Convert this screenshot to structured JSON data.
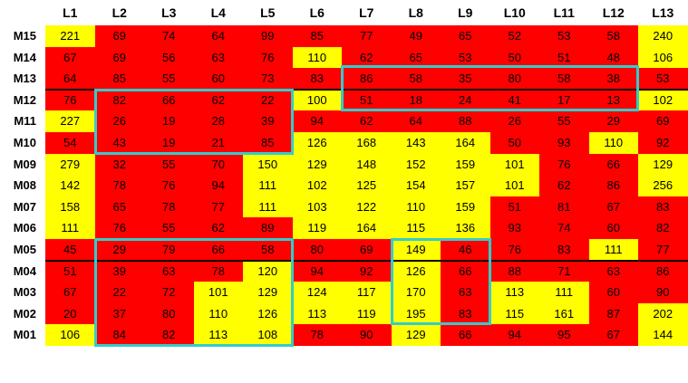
{
  "columns": [
    "L1",
    "L2",
    "L3",
    "L4",
    "L5",
    "L6",
    "L7",
    "L8",
    "L9",
    "L10",
    "L11",
    "L12",
    "L13"
  ],
  "rows": [
    {
      "label": "M15",
      "values": [
        221,
        69,
        74,
        64,
        99,
        85,
        77,
        49,
        65,
        52,
        53,
        58,
        240
      ]
    },
    {
      "label": "M14",
      "values": [
        67,
        69,
        56,
        63,
        76,
        110,
        62,
        65,
        53,
        50,
        51,
        48,
        106
      ]
    },
    {
      "label": "M13",
      "values": [
        64,
        85,
        55,
        60,
        73,
        83,
        86,
        58,
        35,
        80,
        58,
        38,
        53
      ]
    },
    {
      "label": "M12",
      "values": [
        76,
        82,
        66,
        62,
        22,
        100,
        51,
        18,
        24,
        41,
        17,
        13,
        102
      ]
    },
    {
      "label": "M11",
      "values": [
        227,
        26,
        19,
        28,
        39,
        94,
        62,
        64,
        88,
        26,
        55,
        29,
        69
      ]
    },
    {
      "label": "M10",
      "values": [
        54,
        43,
        19,
        21,
        85,
        126,
        168,
        143,
        164,
        50,
        93,
        110,
        92
      ]
    },
    {
      "label": "M09",
      "values": [
        279,
        32,
        55,
        70,
        150,
        129,
        148,
        152,
        159,
        101,
        76,
        66,
        129
      ]
    },
    {
      "label": "M08",
      "values": [
        142,
        78,
        76,
        94,
        111,
        102,
        125,
        154,
        157,
        101,
        62,
        86,
        256
      ]
    },
    {
      "label": "M07",
      "values": [
        158,
        65,
        78,
        77,
        111,
        103,
        122,
        110,
        159,
        51,
        81,
        67,
        83
      ]
    },
    {
      "label": "M06",
      "values": [
        111,
        76,
        55,
        62,
        89,
        119,
        164,
        115,
        136,
        93,
        74,
        60,
        82
      ]
    },
    {
      "label": "M05",
      "values": [
        45,
        29,
        79,
        66,
        58,
        80,
        69,
        149,
        46,
        76,
        83,
        111,
        77
      ]
    },
    {
      "label": "M04",
      "values": [
        51,
        39,
        63,
        78,
        120,
        94,
        92,
        126,
        66,
        88,
        71,
        63,
        86
      ]
    },
    {
      "label": "M03",
      "values": [
        67,
        22,
        72,
        101,
        129,
        124,
        117,
        170,
        63,
        113,
        111,
        60,
        90
      ]
    },
    {
      "label": "M02",
      "values": [
        20,
        37,
        80,
        110,
        126,
        113,
        119,
        195,
        83,
        115,
        161,
        87,
        202
      ]
    },
    {
      "label": "M01",
      "values": [
        106,
        84,
        82,
        113,
        108,
        78,
        90,
        129,
        66,
        94,
        95,
        67,
        144
      ]
    }
  ],
  "colors": {
    "high": "#ffff00",
    "low": "#ff0000",
    "highlight_box": "#33cccc",
    "threshold_rule": "values >= 100 yellow, < 100 red"
  },
  "threshold": 100
}
